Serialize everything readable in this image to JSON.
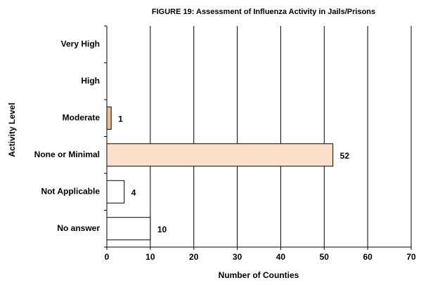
{
  "chart_data": {
    "type": "hbar",
    "title": "FIGURE 19: Assessment of Influenza Activity in Jails/Prisons",
    "x_label": "Number of Counties",
    "y_label": "Activity Level",
    "categories": [
      "Very High",
      "High",
      "Moderate",
      "None or Minimal",
      "Not Applicable",
      "No answer"
    ],
    "values": [
      0,
      0,
      1,
      52,
      4,
      10
    ],
    "colors": [
      "#ffffff",
      "#ffffff",
      "#f2bf8f",
      "#fbe0cc",
      "#ffffff",
      "#ffffff"
    ],
    "xlim": [
      0,
      70
    ],
    "xticks": [
      0,
      10,
      20,
      30,
      40,
      50,
      60,
      70
    ],
    "grid": true
  }
}
